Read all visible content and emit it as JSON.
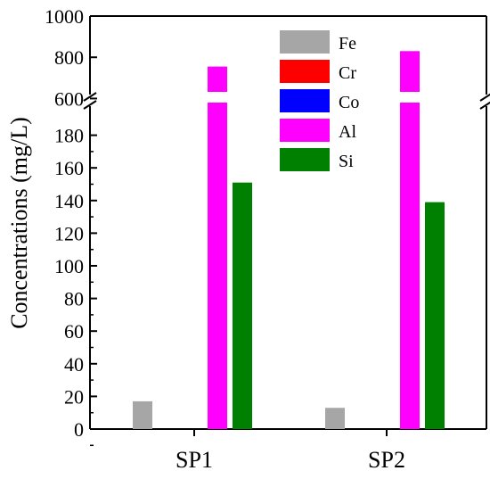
{
  "chart_data": {
    "type": "bar",
    "title": "",
    "xlabel": "",
    "ylabel": "Concentrations (mg/L)",
    "categories": [
      "SP1",
      "SP2"
    ],
    "series": [
      {
        "name": "Fe",
        "color": "#a6a6a6",
        "values": [
          17,
          13
        ]
      },
      {
        "name": "Cr",
        "color": "#ff0000",
        "values": [
          0,
          0
        ]
      },
      {
        "name": "Co",
        "color": "#0000ff",
        "values": [
          0,
          0
        ]
      },
      {
        "name": "Al",
        "color": "#ff00ff",
        "values": [
          755,
          830
        ]
      },
      {
        "name": "Si",
        "color": "#008000",
        "values": [
          151,
          139
        ]
      }
    ],
    "y_axis_break": {
      "lower_range": [
        0,
        200
      ],
      "upper_range": [
        550,
        1000
      ]
    },
    "lower_ticks": [
      "0",
      "20",
      "40",
      "60",
      "80",
      "100",
      "120",
      "140",
      "160",
      "180"
    ],
    "upper_ticks": [
      "600",
      "800",
      "1000"
    ],
    "legend_position": "top-center",
    "grid": false
  }
}
